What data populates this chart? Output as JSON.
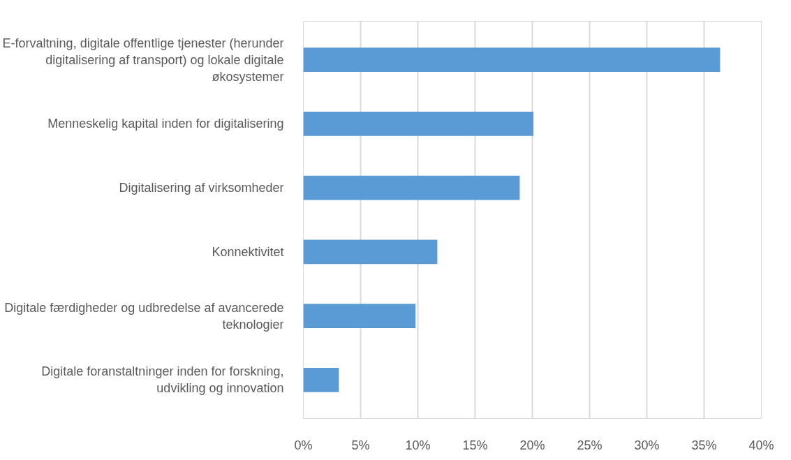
{
  "chart_data": {
    "type": "bar",
    "orientation": "horizontal",
    "categories": [
      "E-forvaltning, digitale offentlige tjenester (herunder digitalisering af transport) og lokale digitale økosystemer",
      "Menneskelig kapital inden for digitalisering",
      "Digitalisering af virksomheder",
      "Konnektivitet",
      "Digitale færdigheder og udbredelse af avancerede teknologier",
      "Digitale foranstaltninger inden for forskning, udvikling og innovation"
    ],
    "values": [
      36.4,
      20.1,
      18.9,
      11.7,
      9.8,
      3.1
    ],
    "color": "#5b9bd5",
    "xlim": [
      0,
      40
    ],
    "xticks": [
      {
        "value": 0,
        "label": "0%"
      },
      {
        "value": 5,
        "label": "5%"
      },
      {
        "value": 10,
        "label": "10%"
      },
      {
        "value": 15,
        "label": "15%"
      },
      {
        "value": 20,
        "label": "20%"
      },
      {
        "value": 25,
        "label": "25%"
      },
      {
        "value": 30,
        "label": "30%"
      },
      {
        "value": 35,
        "label": "35%"
      },
      {
        "value": 40,
        "label": "40%"
      }
    ],
    "grid": "x"
  }
}
